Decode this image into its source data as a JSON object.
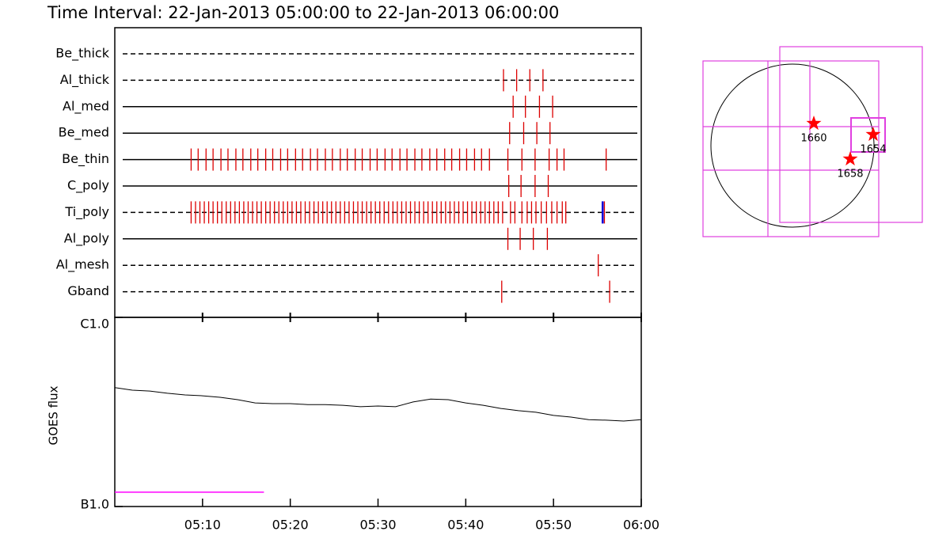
{
  "chart_data": [
    {
      "type": "timeline",
      "title": "Time Interval: 22-Jan-2013 05:00:00 to 22-Jan-2013 06:00:00",
      "xlim": [
        0,
        60
      ],
      "color": "#dd0000",
      "highlight_color": "#0000dd",
      "rows": [
        {
          "name": "Be_thick",
          "dashed": true,
          "times": []
        },
        {
          "name": "Al_thick",
          "dashed": true,
          "times": [
            44.3,
            45.8,
            47.3,
            48.8
          ]
        },
        {
          "name": "Al_med",
          "dashed": false,
          "times": [
            45.4,
            46.8,
            48.4,
            49.9
          ]
        },
        {
          "name": "Be_med",
          "dashed": false,
          "times": [
            45.0,
            46.6,
            48.1,
            49.6
          ]
        },
        {
          "name": "Be_thin",
          "dashed": false,
          "times": [
            8.7,
            9.5,
            10.4,
            11.2,
            12.1,
            12.9,
            13.8,
            14.6,
            15.5,
            16.3,
            17.2,
            18.0,
            18.9,
            19.7,
            20.6,
            21.4,
            22.3,
            23.1,
            24.0,
            24.8,
            25.7,
            26.5,
            27.4,
            28.2,
            29.1,
            29.9,
            30.8,
            31.6,
            32.5,
            33.3,
            34.2,
            35.0,
            35.9,
            36.7,
            37.6,
            38.4,
            39.3,
            40.1,
            41.0,
            41.8,
            42.7,
            44.8,
            46.4,
            47.9,
            49.5,
            50.4,
            51.2,
            56.0
          ]
        },
        {
          "name": "C_poly",
          "dashed": false,
          "times": [
            44.9,
            46.3,
            47.9,
            49.4
          ]
        },
        {
          "name": "Ti_poly",
          "dashed": true,
          "times": [
            8.7,
            9.2,
            9.7,
            10.2,
            10.7,
            11.2,
            11.7,
            12.2,
            12.7,
            13.2,
            13.7,
            14.2,
            14.7,
            15.2,
            15.7,
            16.2,
            16.7,
            17.2,
            17.7,
            18.2,
            18.7,
            19.2,
            19.7,
            20.2,
            20.7,
            21.2,
            21.7,
            22.2,
            22.7,
            23.2,
            23.7,
            24.2,
            24.7,
            25.2,
            25.7,
            26.2,
            26.7,
            27.2,
            27.7,
            28.2,
            28.7,
            29.2,
            29.7,
            30.2,
            30.7,
            31.2,
            31.7,
            32.2,
            32.7,
            33.2,
            33.7,
            34.2,
            34.7,
            35.2,
            35.7,
            36.2,
            36.7,
            37.2,
            37.7,
            38.2,
            38.7,
            39.2,
            39.7,
            40.2,
            40.7,
            41.2,
            41.7,
            42.2,
            42.7,
            43.2,
            43.7,
            44.2,
            45.1,
            45.6,
            46.4,
            47.0,
            47.5,
            48.0,
            48.6,
            49.2,
            49.8,
            50.4,
            51.0,
            51.4,
            55.8
          ],
          "highlight_times": [
            55.6
          ]
        },
        {
          "name": "Al_poly",
          "dashed": false,
          "times": [
            44.8,
            46.2,
            47.7,
            49.3
          ]
        },
        {
          "name": "Al_mesh",
          "dashed": true,
          "times": [
            55.1
          ]
        },
        {
          "name": "Gband",
          "dashed": true,
          "times": [
            44.1,
            56.4
          ]
        }
      ]
    },
    {
      "type": "line",
      "ylabel": "GOES flux",
      "log_scale": true,
      "xlim": [
        0,
        60
      ],
      "ylim": [
        1e-07,
        1e-06
      ],
      "xticks": [
        {
          "value": 10,
          "label": "05:10"
        },
        {
          "value": 20,
          "label": "05:20"
        },
        {
          "value": 30,
          "label": "05:30"
        },
        {
          "value": 40,
          "label": "05:40"
        },
        {
          "value": 50,
          "label": "05:50"
        },
        {
          "value": 60,
          "label": "06:00"
        }
      ],
      "yticks": [
        {
          "value": 1e-07,
          "label": "B1.0"
        },
        {
          "value": 1e-06,
          "label": "C1.0"
        }
      ],
      "x": [
        0,
        2,
        4,
        6,
        8,
        10,
        12,
        14,
        16,
        18,
        20,
        22,
        24,
        26,
        28,
        30,
        32,
        34,
        36,
        38,
        40,
        42,
        44,
        46,
        48,
        50,
        52,
        54,
        56,
        58,
        60
      ],
      "series": [
        {
          "color": "#000000",
          "values": [
            4.25e-07,
            4.12e-07,
            4.08e-07,
            3.97e-07,
            3.89e-07,
            3.85e-07,
            3.78e-07,
            3.67e-07,
            3.53e-07,
            3.5e-07,
            3.5e-07,
            3.46e-07,
            3.46e-07,
            3.43e-07,
            3.37e-07,
            3.4e-07,
            3.37e-07,
            3.57e-07,
            3.7e-07,
            3.67e-07,
            3.53e-07,
            3.43e-07,
            3.3e-07,
            3.21e-07,
            3.15e-07,
            3.03e-07,
            2.97e-07,
            2.88e-07,
            2.86e-07,
            2.83e-07,
            2.88e-07
          ]
        },
        {
          "color": "#ff00ff",
          "x": [
            0,
            17
          ],
          "values": [
            1.19e-07,
            1.19e-07
          ]
        }
      ]
    },
    {
      "type": "map",
      "regions": [
        {
          "label": "1660"
        },
        {
          "label": "1654"
        },
        {
          "label": "1658"
        }
      ]
    }
  ]
}
